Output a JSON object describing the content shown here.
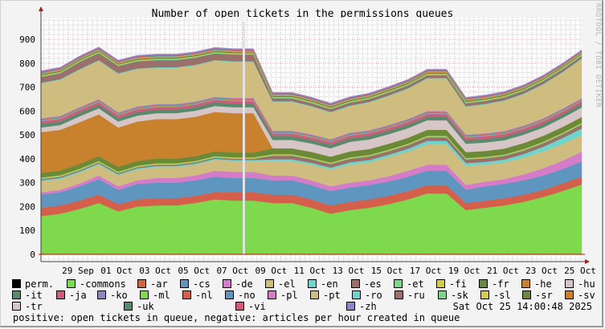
{
  "title": "Number of open tickets in the permissions queues",
  "watermark": "RRDTOOL / TOBI OETIKER",
  "timestamp": "Sat Oct 25 14:00:48 2025",
  "footer": "positive: open tickets in queue, negative: articles per hour created in queue",
  "chart_data": {
    "type": "area",
    "stacked": true,
    "title": "Number of open tickets in the permissions queues",
    "ylim": [
      -10,
      990
    ],
    "yticks": [
      0,
      100,
      200,
      300,
      400,
      500,
      600,
      700,
      800,
      900
    ],
    "xtick_labels": [
      "29 Sep",
      "01 Oct",
      "03 Oct",
      "05 Oct",
      "07 Oct",
      "09 Oct",
      "11 Oct",
      "13 Oct",
      "15 Oct",
      "17 Oct",
      "19 Oct",
      "21 Oct",
      "23 Oct",
      "25 Oct"
    ],
    "xtick_dates": [
      "2025-09-29",
      "2025-10-01",
      "2025-10-03",
      "2025-10-05",
      "2025-10-07",
      "2025-10-09",
      "2025-10-11",
      "2025-10-13",
      "2025-10-15",
      "2025-10-17",
      "2025-10-19",
      "2025-10-21",
      "2025-10-23",
      "2025-10-25"
    ],
    "grid": true,
    "legend_placement": "bottom",
    "x": [
      "2025-09-27 14:00",
      "2025-09-28 14:00",
      "2025-09-29 14:00",
      "2025-09-30 14:00",
      "2025-10-01 14:00",
      "2025-10-02 14:00",
      "2025-10-03 14:00",
      "2025-10-04 14:00",
      "2025-10-05 14:00",
      "2025-10-06 14:00",
      "2025-10-07 14:00",
      "2025-10-08 14:00",
      "2025-10-09 14:00",
      "2025-10-10 14:00",
      "2025-10-11 14:00",
      "2025-10-12 14:00",
      "2025-10-13 14:00",
      "2025-10-14 14:00",
      "2025-10-15 14:00",
      "2025-10-16 14:00",
      "2025-10-17 14:00",
      "2025-10-18 14:00",
      "2025-10-19 14:00",
      "2025-10-20 14:00",
      "2025-10-21 14:00",
      "2025-10-22 14:00",
      "2025-10-23 14:00",
      "2025-10-24 14:00",
      "2025-10-25 14:00"
    ],
    "legend_perm": {
      "name": "perm.",
      "color": "#000000"
    },
    "series": [
      {
        "name": "-commons",
        "color": "#7ed94c",
        "values": [
          160,
          170,
          190,
          215,
          180,
          200,
          205,
          205,
          215,
          230,
          225,
          225,
          215,
          215,
          195,
          170,
          185,
          195,
          210,
          230,
          255,
          255,
          185,
          195,
          205,
          220,
          240,
          265,
          292
        ]
      },
      {
        "name": "-ar",
        "color": "#d4604c",
        "values": [
          35,
          35,
          35,
          35,
          30,
          30,
          30,
          30,
          30,
          30,
          35,
          35,
          35,
          35,
          35,
          35,
          35,
          35,
          35,
          35,
          35,
          35,
          30,
          30,
          30,
          30,
          30,
          32,
          33
        ]
      },
      {
        "name": "-cs",
        "color": "#5f96c0",
        "values": [
          55,
          55,
          60,
          65,
          60,
          65,
          65,
          65,
          65,
          65,
          60,
          60,
          60,
          60,
          60,
          60,
          60,
          60,
          60,
          60,
          60,
          60,
          55,
          60,
          60,
          60,
          60,
          60,
          64
        ]
      },
      {
        "name": "-de",
        "color": "#d47cc8",
        "values": [
          10,
          10,
          12,
          15,
          15,
          15,
          20,
          20,
          20,
          25,
          25,
          25,
          20,
          20,
          20,
          20,
          20,
          20,
          22,
          25,
          25,
          25,
          20,
          20,
          20,
          25,
          30,
          35,
          40
        ]
      },
      {
        "name": "-el",
        "color": "#cfbd80",
        "values": [
          45,
          45,
          45,
          45,
          45,
          45,
          45,
          45,
          45,
          45,
          45,
          45,
          60,
          60,
          65,
          70,
          75,
          75,
          80,
          80,
          85,
          85,
          80,
          70,
          70,
          70,
          70,
          70,
          70
        ]
      },
      {
        "name": "-en",
        "color": "#6fd5cc",
        "values": [
          5,
          5,
          5,
          5,
          5,
          5,
          5,
          5,
          5,
          5,
          5,
          5,
          8,
          8,
          8,
          8,
          10,
          10,
          10,
          12,
          15,
          15,
          12,
          12,
          12,
          15,
          20,
          25,
          28
        ]
      },
      {
        "name": "-es",
        "color": "#9a706a",
        "values": [
          5,
          5,
          5,
          5,
          5,
          5,
          5,
          5,
          5,
          5,
          5,
          5,
          15,
          15,
          15,
          15,
          15,
          15,
          15,
          15,
          15,
          15,
          15,
          15,
          15,
          15,
          15,
          15,
          17
        ]
      },
      {
        "name": "-et",
        "color": "#7bd68a",
        "values": [
          3,
          3,
          3,
          3,
          3,
          3,
          3,
          3,
          3,
          3,
          3,
          3,
          3,
          3,
          3,
          3,
          3,
          3,
          3,
          3,
          3,
          3,
          3,
          3,
          3,
          3,
          3,
          3,
          3
        ]
      },
      {
        "name": "-fi",
        "color": "#d4cc46",
        "values": [
          3,
          3,
          3,
          3,
          3,
          3,
          3,
          3,
          3,
          3,
          3,
          3,
          3,
          3,
          3,
          3,
          3,
          3,
          3,
          3,
          3,
          3,
          3,
          3,
          3,
          3,
          3,
          3,
          3
        ]
      },
      {
        "name": "-fr",
        "color": "#6a8a38",
        "values": [
          20,
          20,
          20,
          20,
          20,
          20,
          20,
          20,
          20,
          20,
          20,
          20,
          25,
          25,
          25,
          25,
          25,
          25,
          25,
          25,
          25,
          25,
          25,
          25,
          25,
          25,
          25,
          25,
          25
        ]
      },
      {
        "name": "-he",
        "color": "#c8822e",
        "values": [
          170,
          170,
          175,
          175,
          165,
          165,
          165,
          165,
          165,
          165,
          165,
          165,
          0,
          0,
          0,
          0,
          0,
          0,
          0,
          0,
          0,
          0,
          0,
          0,
          0,
          0,
          0,
          0,
          0
        ]
      },
      {
        "name": "-hu",
        "color": "#d6c6c8",
        "values": [
          20,
          20,
          25,
          25,
          25,
          25,
          25,
          25,
          25,
          25,
          25,
          25,
          35,
          35,
          35,
          35,
          40,
          40,
          40,
          40,
          40,
          40,
          35,
          35,
          35,
          35,
          35,
          38,
          40
        ]
      },
      {
        "name": "-it",
        "color": "#5a8a6c",
        "values": [
          15,
          15,
          15,
          15,
          15,
          15,
          15,
          15,
          15,
          15,
          15,
          15,
          15,
          15,
          15,
          15,
          15,
          15,
          15,
          15,
          15,
          15,
          15,
          15,
          15,
          15,
          15,
          15,
          15
        ]
      },
      {
        "name": "-ja",
        "color": "#d05c78",
        "values": [
          10,
          10,
          10,
          10,
          10,
          10,
          10,
          10,
          10,
          10,
          10,
          10,
          10,
          10,
          10,
          10,
          10,
          10,
          10,
          10,
          10,
          10,
          10,
          10,
          10,
          10,
          10,
          10,
          10
        ]
      },
      {
        "name": "-ko",
        "color": "#9484c4",
        "values": [
          3,
          3,
          3,
          3,
          3,
          3,
          3,
          3,
          3,
          3,
          3,
          3,
          3,
          3,
          3,
          3,
          3,
          3,
          3,
          3,
          3,
          3,
          3,
          3,
          3,
          3,
          3,
          3,
          3
        ]
      },
      {
        "name": "-ml",
        "color": "#7ed94c",
        "values": [
          2,
          2,
          2,
          2,
          2,
          2,
          2,
          2,
          2,
          2,
          2,
          2,
          2,
          2,
          2,
          2,
          2,
          2,
          2,
          2,
          2,
          2,
          2,
          2,
          2,
          2,
          2,
          2,
          2
        ]
      },
      {
        "name": "-nl",
        "color": "#d4604c",
        "values": [
          3,
          3,
          3,
          3,
          3,
          3,
          3,
          3,
          3,
          3,
          3,
          3,
          3,
          3,
          3,
          3,
          3,
          3,
          3,
          3,
          3,
          3,
          3,
          3,
          3,
          3,
          3,
          3,
          3
        ]
      },
      {
        "name": "-no",
        "color": "#5f96c0",
        "values": [
          3,
          3,
          3,
          3,
          3,
          3,
          3,
          3,
          3,
          3,
          3,
          3,
          3,
          3,
          3,
          3,
          3,
          3,
          3,
          3,
          3,
          3,
          3,
          3,
          3,
          3,
          3,
          3,
          3
        ]
      },
      {
        "name": "-pl",
        "color": "#d47cc8",
        "values": [
          3,
          3,
          3,
          3,
          3,
          3,
          3,
          3,
          3,
          3,
          3,
          3,
          3,
          3,
          3,
          3,
          3,
          3,
          3,
          3,
          3,
          3,
          3,
          3,
          3,
          3,
          3,
          3,
          3
        ]
      },
      {
        "name": "-pt",
        "color": "#cfbd80",
        "values": [
          145,
          150,
          155,
          160,
          160,
          155,
          150,
          150,
          150,
          150,
          150,
          150,
          120,
          120,
          115,
          110,
          110,
          115,
          120,
          125,
          135,
          135,
          115,
          120,
          125,
          130,
          140,
          150,
          163
        ]
      },
      {
        "name": "-ro",
        "color": "#6fd5cc",
        "values": [
          3,
          3,
          3,
          3,
          3,
          3,
          3,
          3,
          3,
          3,
          3,
          3,
          3,
          3,
          3,
          3,
          3,
          3,
          3,
          3,
          3,
          3,
          3,
          3,
          3,
          3,
          3,
          3,
          3
        ]
      },
      {
        "name": "-ru",
        "color": "#9a706a",
        "values": [
          25,
          25,
          30,
          30,
          30,
          30,
          30,
          30,
          30,
          28,
          28,
          28,
          12,
          12,
          12,
          12,
          12,
          12,
          12,
          12,
          12,
          12,
          12,
          12,
          12,
          12,
          12,
          12,
          11
        ]
      },
      {
        "name": "-sk",
        "color": "#7bd68a",
        "values": [
          4,
          4,
          4,
          4,
          4,
          4,
          4,
          4,
          4,
          4,
          4,
          4,
          4,
          4,
          4,
          4,
          4,
          4,
          4,
          4,
          4,
          4,
          4,
          4,
          4,
          4,
          4,
          4,
          4
        ]
      },
      {
        "name": "-sl",
        "color": "#d4cc46",
        "values": [
          2,
          2,
          2,
          2,
          2,
          2,
          2,
          2,
          2,
          2,
          2,
          2,
          2,
          2,
          2,
          2,
          2,
          2,
          2,
          2,
          2,
          2,
          2,
          2,
          2,
          2,
          2,
          2,
          2
        ]
      },
      {
        "name": "-sr",
        "color": "#6a8a38",
        "values": [
          4,
          4,
          4,
          4,
          4,
          4,
          4,
          4,
          4,
          4,
          4,
          4,
          4,
          4,
          4,
          4,
          4,
          4,
          4,
          4,
          4,
          4,
          4,
          4,
          4,
          4,
          4,
          4,
          4
        ]
      },
      {
        "name": "-sv",
        "color": "#c8822e",
        "values": [
          3,
          3,
          3,
          3,
          3,
          3,
          3,
          3,
          3,
          3,
          3,
          3,
          3,
          3,
          3,
          3,
          3,
          3,
          3,
          3,
          3,
          3,
          3,
          3,
          3,
          3,
          3,
          3,
          3
        ]
      },
      {
        "name": "-tr",
        "color": "#d6c6c8",
        "values": [
          2,
          2,
          2,
          2,
          2,
          2,
          2,
          2,
          2,
          2,
          2,
          2,
          2,
          2,
          2,
          2,
          2,
          2,
          2,
          2,
          2,
          2,
          2,
          2,
          2,
          2,
          2,
          2,
          2
        ]
      },
      {
        "name": "-uk",
        "color": "#5a8a6c",
        "values": [
          3,
          3,
          3,
          3,
          3,
          3,
          3,
          3,
          3,
          3,
          3,
          3,
          3,
          3,
          3,
          3,
          3,
          3,
          3,
          3,
          3,
          3,
          3,
          3,
          3,
          3,
          3,
          3,
          3
        ]
      },
      {
        "name": "-vi",
        "color": "#d05c78",
        "values": [
          3,
          3,
          3,
          3,
          3,
          3,
          3,
          3,
          3,
          3,
          3,
          3,
          3,
          3,
          3,
          3,
          3,
          3,
          3,
          3,
          3,
          3,
          3,
          3,
          3,
          3,
          3,
          3,
          3
        ]
      },
      {
        "name": "-zh",
        "color": "#9484c4",
        "values": [
          4,
          4,
          4,
          4,
          4,
          4,
          4,
          4,
          4,
          4,
          4,
          4,
          4,
          4,
          4,
          4,
          4,
          4,
          4,
          4,
          4,
          4,
          4,
          4,
          4,
          4,
          4,
          4,
          4
        ]
      }
    ]
  }
}
